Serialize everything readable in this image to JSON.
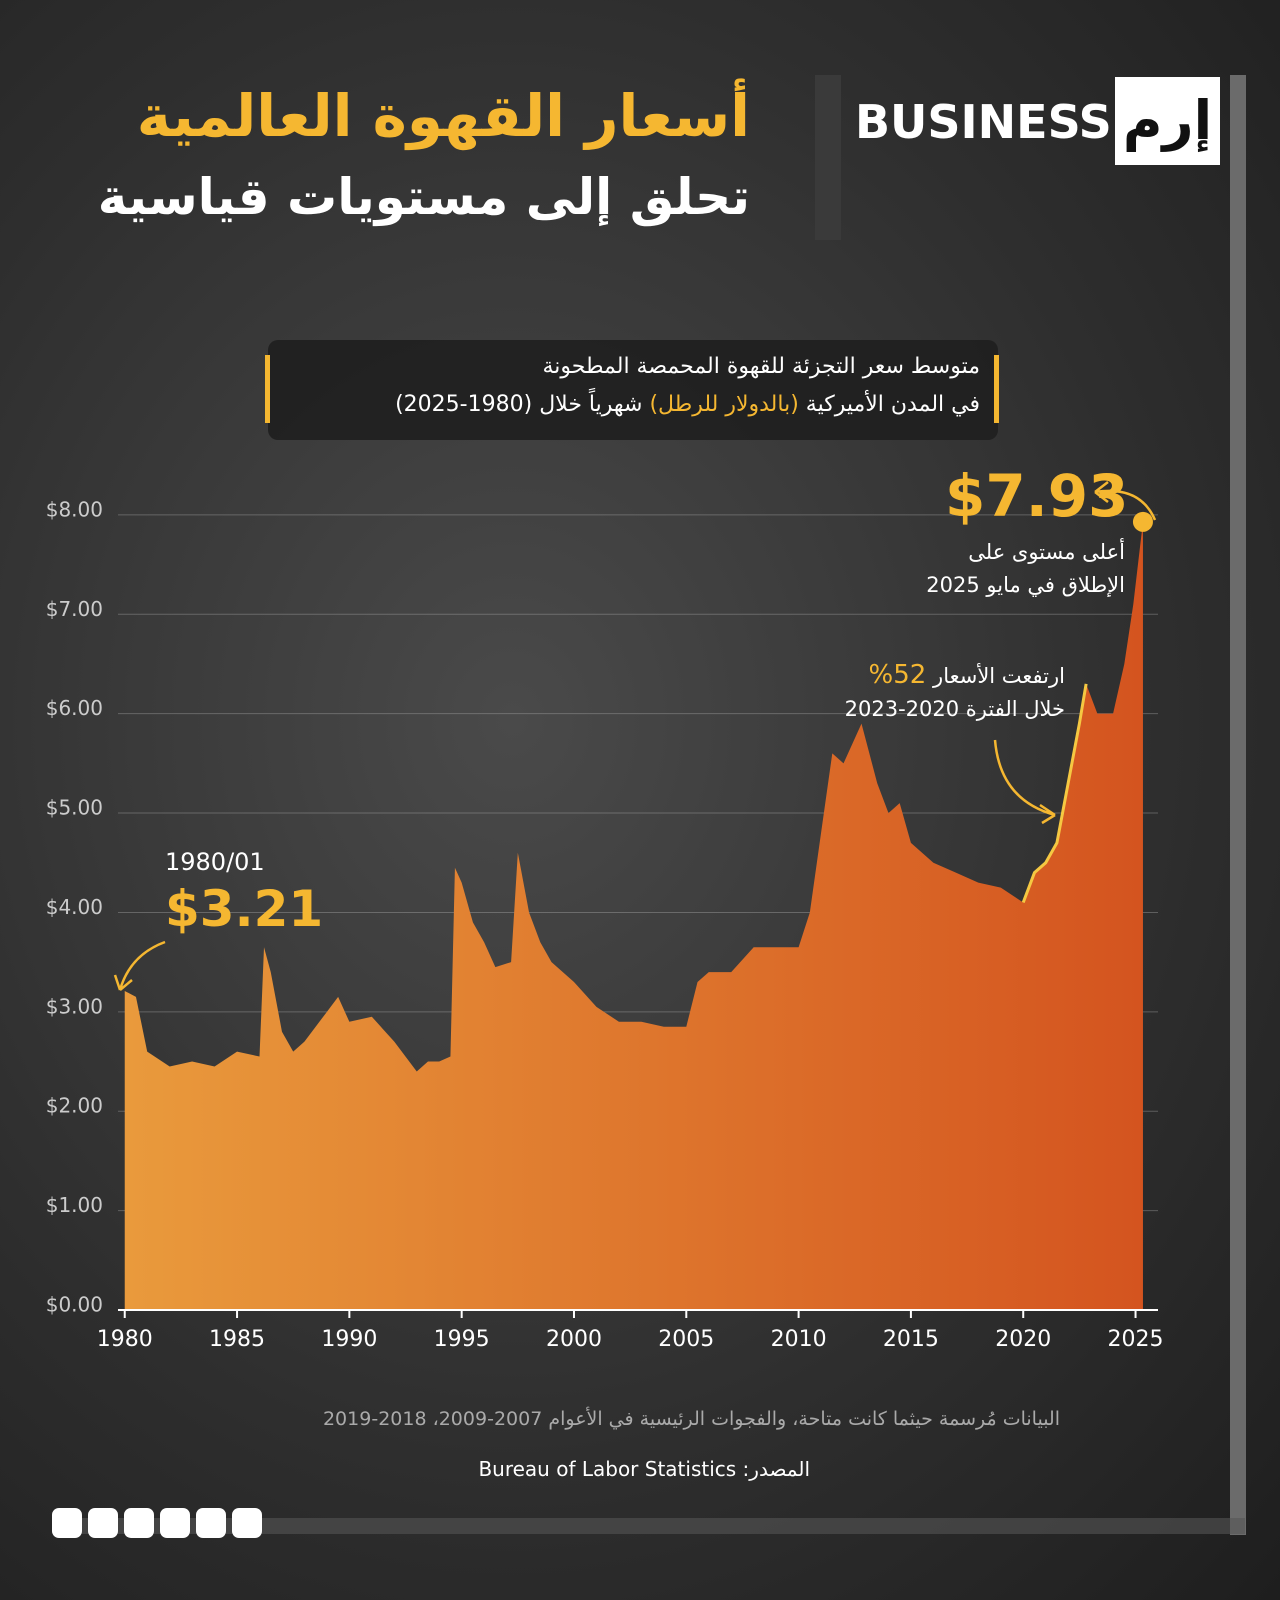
{
  "header": {
    "brand": "BUSINESS",
    "logo": "إرم",
    "title": "أسعار القهوة العالمية",
    "title_line2": "تحلق إلى مستويات قياسية"
  },
  "chart_data": {
    "type": "area",
    "subtitle_line1": "متوسط سعر التجزئة للقهوة المحمصة المطحونة",
    "subtitle_line2_start": "في المدن الأميركية",
    "subtitle_line2_highlight": "(بالدولار للرطل)",
    "subtitle_line2_end": "شهرياً خلال (1980-2025)",
    "x": [
      1980.0,
      1980.5,
      1981.0,
      1982,
      1983,
      1984,
      1985,
      1986.0,
      1986.2,
      1986.5,
      1987,
      1987.5,
      1988,
      1989,
      1989.5,
      1990,
      1991,
      1992,
      1993,
      1993.5,
      1994,
      1994.5,
      1994.7,
      1995.0,
      1995.5,
      1996,
      1996.5,
      1997.2,
      1997.5,
      1998,
      1998.5,
      1999,
      2000,
      2001,
      2002,
      2003,
      2004,
      2005,
      2005.5,
      2006,
      2007,
      2008,
      2010,
      2010.5,
      2011.0,
      2011.5,
      2012,
      2012.8,
      2013.5,
      2014,
      2014.5,
      2015,
      2016,
      2017,
      2018,
      2019,
      2020,
      2020.5,
      2021,
      2021.5,
      2022,
      2022.5,
      2022.8,
      2023.3,
      2024,
      2024.5,
      2024.9,
      2025.33
    ],
    "values": [
      3.21,
      3.15,
      2.6,
      2.45,
      2.5,
      2.45,
      2.6,
      2.55,
      3.65,
      3.4,
      2.8,
      2.6,
      2.7,
      3.0,
      3.15,
      2.9,
      2.95,
      2.7,
      2.4,
      2.5,
      2.5,
      2.55,
      4.45,
      4.3,
      3.9,
      3.7,
      3.45,
      3.5,
      4.6,
      4.0,
      3.7,
      3.5,
      3.3,
      3.05,
      2.9,
      2.9,
      2.85,
      2.85,
      3.3,
      3.4,
      3.4,
      3.65,
      3.65,
      4.0,
      4.8,
      5.6,
      5.5,
      5.9,
      5.3,
      5.0,
      5.1,
      4.7,
      4.5,
      4.4,
      4.3,
      4.25,
      4.1,
      4.4,
      4.5,
      4.7,
      5.3,
      5.9,
      6.3,
      6.0,
      6.0,
      6.5,
      7.1,
      7.93
    ],
    "value_labels": [
      "$3.21",
      null,
      null,
      null,
      null,
      null,
      null,
      null,
      null,
      null,
      null,
      null,
      null,
      null,
      null,
      null,
      null,
      null,
      null,
      null,
      null,
      null,
      null,
      null,
      null,
      null,
      null,
      null,
      null,
      null,
      null,
      null,
      null,
      null,
      null,
      null,
      null,
      null,
      null,
      null,
      null,
      null,
      null,
      null,
      null,
      null,
      null,
      null,
      null,
      null,
      null,
      null,
      null,
      null,
      null,
      null,
      null,
      null,
      null,
      null,
      null,
      null,
      null,
      null,
      null,
      null,
      null,
      "$7.93"
    ],
    "color_start": "#e99a3c",
    "color_end": "#d4541f",
    "highlight": {
      "from": 2020,
      "to": 2023,
      "color": "#f5c842"
    },
    "xlim": [
      1979.7,
      2026
    ],
    "xticks": [
      1980,
      1985,
      1990,
      1995,
      2000,
      2005,
      2010,
      2015,
      2020,
      2025
    ],
    "ylim": [
      0,
      8.2
    ],
    "yticks": [
      {
        "value": 0,
        "label": "$0.00"
      },
      {
        "value": 1,
        "label": "$1.00"
      },
      {
        "value": 2,
        "label": "$2.00"
      },
      {
        "value": 3,
        "label": "$3.00"
      },
      {
        "value": 4,
        "label": "$4.00"
      },
      {
        "value": 5,
        "label": "$5.00"
      },
      {
        "value": 6,
        "label": "$6.00"
      },
      {
        "value": 7,
        "label": "$7.00"
      },
      {
        "value": 8,
        "label": "$8.00"
      }
    ],
    "grid": true,
    "annotations": {
      "start_date": "1980/01",
      "peak_line1": "أعلى مستوى على",
      "peak_line2": "الإطلاق في مايو 2025",
      "rise_text": "ارتفعت الأسعار",
      "rise_pct": "52%",
      "rise_line2": "خلال الفترة 2020-2023"
    }
  },
  "footer": {
    "note": "البيانات مُرسمة حيثما كانت متاحة، والفجوات الرئيسية في الأعوام 2007-2009، 2018-2019",
    "source": "المصدر: Bureau of Labor Statistics"
  }
}
